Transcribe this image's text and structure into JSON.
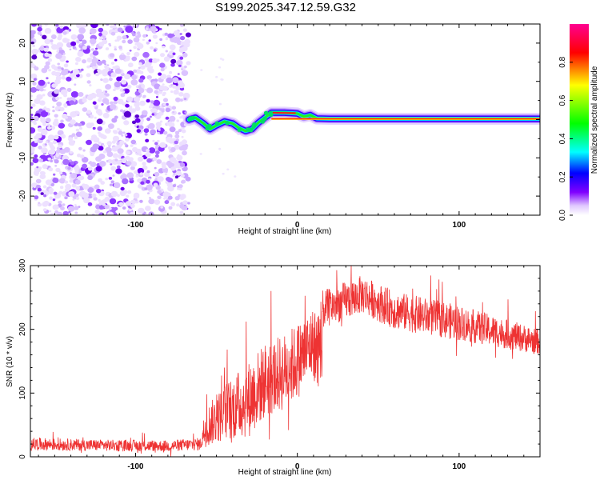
{
  "title": "S199.2025.347.12.59.G32",
  "chart_data": [
    {
      "type": "heatmap",
      "title": "S199.2025.347.12.59.G32",
      "xlabel": "Height of straight line (km)",
      "ylabel": "Frequency (Hz)",
      "xlim": [
        -165,
        150
      ],
      "ylim": [
        -25,
        25
      ],
      "xticks": [
        -100,
        0,
        100
      ],
      "xtick_labels": [
        "-100",
        "0",
        "100"
      ],
      "yticks": [
        -20,
        -10,
        0,
        10,
        20
      ],
      "ytick_labels": [
        "-20",
        "-10",
        "0",
        "10",
        "20"
      ],
      "noise_region_x": [
        -165,
        -67
      ],
      "signal_track": [
        {
          "x": -67,
          "y": 0.0
        },
        {
          "x": -63,
          "y": 0.5
        },
        {
          "x": -58,
          "y": -1.0
        },
        {
          "x": -54,
          "y": -2.5
        },
        {
          "x": -50,
          "y": -1.5
        },
        {
          "x": -45,
          "y": -0.5
        },
        {
          "x": -40,
          "y": -1.0
        },
        {
          "x": -36,
          "y": -2.2
        },
        {
          "x": -32,
          "y": -3.0
        },
        {
          "x": -28,
          "y": -2.5
        },
        {
          "x": -24,
          "y": -0.8
        },
        {
          "x": -20,
          "y": 0.5
        },
        {
          "x": -16,
          "y": 1.8
        },
        {
          "x": -8,
          "y": 1.8
        },
        {
          "x": 0,
          "y": 1.6
        },
        {
          "x": 4,
          "y": 0.8
        },
        {
          "x": 8,
          "y": 1.2
        },
        {
          "x": 12,
          "y": 0.3
        },
        {
          "x": 20,
          "y": 0.2
        },
        {
          "x": 60,
          "y": 0.2
        },
        {
          "x": 100,
          "y": 0.2
        },
        {
          "x": 150,
          "y": 0.2
        }
      ],
      "colorbar": {
        "label": "Normalized spectral amplitude",
        "range": [
          0,
          1
        ],
        "ticks": [
          0.0,
          0.2,
          0.4,
          0.6,
          0.8
        ],
        "tick_labels": [
          "0.0",
          "0.2",
          "0.4",
          "0.6",
          "0.8"
        ],
        "colors": [
          "#ffffff",
          "#8000ff",
          "#0000ff",
          "#00ffff",
          "#00ff00",
          "#ffff00",
          "#ff0000",
          "#ff0080"
        ]
      }
    },
    {
      "type": "line",
      "xlabel": "Height of straight line (km)",
      "ylabel": "SNR (10 * v/v)",
      "xlim": [
        -165,
        150
      ],
      "ylim": [
        0,
        300
      ],
      "xticks": [
        -100,
        0,
        100
      ],
      "xtick_labels": [
        "-100",
        "0",
        "100"
      ],
      "yticks": [
        0,
        100,
        200,
        300
      ],
      "ytick_labels": [
        "0",
        "100",
        "200",
        "300"
      ],
      "color": "#ee3333",
      "series": [
        {
          "name": "SNR",
          "envelope": [
            {
              "x": -165,
              "mean": 20,
              "spread": 10
            },
            {
              "x": -120,
              "mean": 18,
              "spread": 9
            },
            {
              "x": -80,
              "mean": 17,
              "spread": 9
            },
            {
              "x": -60,
              "mean": 20,
              "spread": 10
            },
            {
              "x": -57,
              "mean": 45,
              "spread": 30
            },
            {
              "x": -45,
              "mean": 70,
              "spread": 45
            },
            {
              "x": -30,
              "mean": 90,
              "spread": 60
            },
            {
              "x": -20,
              "mean": 120,
              "spread": 60
            },
            {
              "x": -10,
              "mean": 130,
              "spread": 60
            },
            {
              "x": 0,
              "mean": 150,
              "spread": 60
            },
            {
              "x": 10,
              "mean": 180,
              "spread": 55
            },
            {
              "x": 15,
              "mean": 230,
              "spread": 30
            },
            {
              "x": 40,
              "mean": 255,
              "spread": 30
            },
            {
              "x": 60,
              "mean": 230,
              "spread": 30
            },
            {
              "x": 100,
              "mean": 210,
              "spread": 28
            },
            {
              "x": 150,
              "mean": 180,
              "spread": 20
            }
          ]
        }
      ]
    }
  ]
}
